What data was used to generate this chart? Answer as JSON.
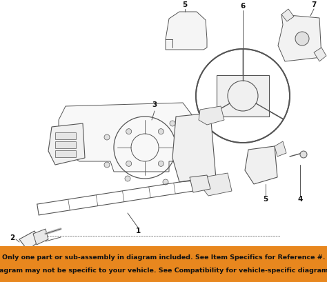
{
  "bg_color": "#ffffff",
  "banner_color": "#e8871e",
  "banner_text_line1": "Only one part or sub-assembly in diagram included. See Item Specifics for Reference #.",
  "banner_text_line2": "Diagram may not be specific to your vehicle. See Compatibility for vehicle-specific diagrams.",
  "banner_text_color": "#111111",
  "banner_fontsize": 6.8,
  "lc": "#555555",
  "lw": 0.7,
  "fig_w": 4.74,
  "fig_h": 4.1,
  "dpi": 100
}
